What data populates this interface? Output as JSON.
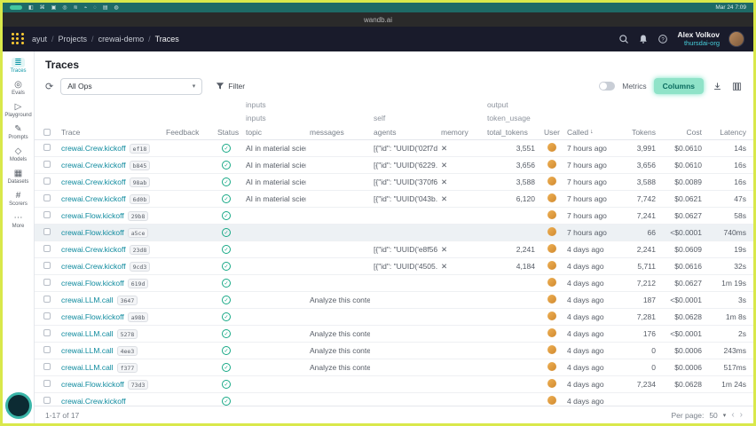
{
  "menubar": {
    "icons_left": [
      "◧",
      "⌘",
      "▣",
      "◎",
      "≋",
      "⌁",
      "◌",
      "▤",
      "◍"
    ],
    "time": "Mar 24 7:09"
  },
  "titlebar": {
    "title": "wandb.ai"
  },
  "header": {
    "breadcrumbs": [
      "ayut",
      "Projects",
      "crewai-demo",
      "Traces"
    ],
    "crumb_sep": "/",
    "user_name": "Alex Volkov",
    "user_org": "thursdai-org"
  },
  "sidebar": {
    "items": [
      {
        "name": "traces",
        "icon": "≣",
        "label": "Traces",
        "active": true
      },
      {
        "name": "evals",
        "icon": "◎",
        "label": "Evals",
        "active": false
      },
      {
        "name": "playground",
        "icon": "▷",
        "label": "Playground",
        "active": false
      },
      {
        "name": "prompts",
        "icon": "✎",
        "label": "Prompts",
        "active": false
      },
      {
        "name": "models",
        "icon": "◇",
        "label": "Models",
        "active": false
      },
      {
        "name": "datasets",
        "icon": "▦",
        "label": "Datasets",
        "active": false
      },
      {
        "name": "scorers",
        "icon": "#",
        "label": "Scorers",
        "active": false
      },
      {
        "name": "more",
        "icon": "⋯",
        "label": "More",
        "active": false
      }
    ]
  },
  "page": {
    "title": "Traces"
  },
  "toolbar": {
    "ops_selected": "All Ops",
    "filter_label": "Filter",
    "metrics_label": "Metrics",
    "columns_label": "Columns"
  },
  "table": {
    "groups": {
      "inputs1": "inputs",
      "output1": "output",
      "inputs2": "inputs",
      "self": "self",
      "token_usage": "token_usage"
    },
    "headers": {
      "trace": "Trace",
      "feedback": "Feedback",
      "status": "Status",
      "topic": "topic",
      "messages": "messages",
      "agents": "agents",
      "memory": "memory",
      "total_tokens": "total_tokens",
      "user": "User",
      "called": "Called",
      "tokens": "Tokens",
      "cost": "Cost",
      "latency": "Latency"
    },
    "rows": [
      {
        "name": "crewai.Crew.kickoff",
        "id": "ef18",
        "topic": "AI in material science",
        "messages": "",
        "agents": "[{\"id\": \"UUID('02f7d...",
        "memory": "✕",
        "total_tokens": "3,551",
        "called": "7 hours ago",
        "tokens": "3,991",
        "cost": "$0.0610",
        "latency": "14s",
        "selected": false
      },
      {
        "name": "crewai.Crew.kickoff",
        "id": "b845",
        "topic": "AI in material science",
        "messages": "",
        "agents": "[{\"id\": \"UUID('6229...",
        "memory": "✕",
        "total_tokens": "3,656",
        "called": "7 hours ago",
        "tokens": "3,656",
        "cost": "$0.0610",
        "latency": "16s",
        "selected": false
      },
      {
        "name": "crewai.Crew.kickoff",
        "id": "98ab",
        "topic": "AI in material science",
        "messages": "",
        "agents": "[{\"id\": \"UUID('370f6...",
        "memory": "✕",
        "total_tokens": "3,588",
        "called": "7 hours ago",
        "tokens": "3,588",
        "cost": "$0.0089",
        "latency": "16s",
        "selected": false
      },
      {
        "name": "crewai.Crew.kickoff",
        "id": "6d0b",
        "topic": "AI in material science",
        "messages": "",
        "agents": "[{\"id\": \"UUID('043b...",
        "memory": "✕",
        "total_tokens": "6,120",
        "called": "7 hours ago",
        "tokens": "7,742",
        "cost": "$0.0621",
        "latency": "47s",
        "selected": false
      },
      {
        "name": "crewai.Flow.kickoff",
        "id": "29b8",
        "topic": "",
        "messages": "",
        "agents": "",
        "memory": "",
        "total_tokens": "",
        "called": "7 hours ago",
        "tokens": "7,241",
        "cost": "$0.0627",
        "latency": "58s",
        "selected": false
      },
      {
        "name": "crewai.Flow.kickoff",
        "id": "a5ce",
        "topic": "",
        "messages": "",
        "agents": "",
        "memory": "",
        "total_tokens": "",
        "called": "7 hours ago",
        "tokens": "66",
        "cost": "<$0.0001",
        "latency": "740ms",
        "selected": true
      },
      {
        "name": "crewai.Crew.kickoff",
        "id": "23d8",
        "topic": "",
        "messages": "",
        "agents": "[{\"id\": \"UUID('e8f56...",
        "memory": "✕",
        "total_tokens": "2,241",
        "called": "4 days ago",
        "tokens": "2,241",
        "cost": "$0.0609",
        "latency": "19s",
        "selected": false
      },
      {
        "name": "crewai.Crew.kickoff",
        "id": "9cd3",
        "topic": "",
        "messages": "",
        "agents": "[{\"id\": \"UUID('4505...",
        "memory": "✕",
        "total_tokens": "4,184",
        "called": "4 days ago",
        "tokens": "5,711",
        "cost": "$0.0616",
        "latency": "32s",
        "selected": false
      },
      {
        "name": "crewai.Flow.kickoff",
        "id": "619d",
        "topic": "",
        "messages": "",
        "agents": "",
        "memory": "",
        "total_tokens": "",
        "called": "4 days ago",
        "tokens": "7,212",
        "cost": "$0.0627",
        "latency": "1m 19s",
        "selected": false
      },
      {
        "name": "crewai.LLM.call",
        "id": "3647",
        "topic": "",
        "messages": "Analyze this conten...",
        "agents": "",
        "memory": "",
        "total_tokens": "",
        "called": "4 days ago",
        "tokens": "187",
        "cost": "<$0.0001",
        "latency": "3s",
        "selected": false
      },
      {
        "name": "crewai.Flow.kickoff",
        "id": "a98b",
        "topic": "",
        "messages": "",
        "agents": "",
        "memory": "",
        "total_tokens": "",
        "called": "4 days ago",
        "tokens": "7,281",
        "cost": "$0.0628",
        "latency": "1m 8s",
        "selected": false
      },
      {
        "name": "crewai.LLM.call",
        "id": "5278",
        "topic": "",
        "messages": "Analyze this conten...",
        "agents": "",
        "memory": "",
        "total_tokens": "",
        "called": "4 days ago",
        "tokens": "176",
        "cost": "<$0.0001",
        "latency": "2s",
        "selected": false
      },
      {
        "name": "crewai.LLM.call",
        "id": "4ee3",
        "topic": "",
        "messages": "Analyze this conten...",
        "agents": "",
        "memory": "",
        "total_tokens": "",
        "called": "4 days ago",
        "tokens": "0",
        "cost": "$0.0006",
        "latency": "243ms",
        "selected": false
      },
      {
        "name": "crewai.LLM.call",
        "id": "f377",
        "topic": "",
        "messages": "Analyze this conten...",
        "agents": "",
        "memory": "",
        "total_tokens": "",
        "called": "4 days ago",
        "tokens": "0",
        "cost": "$0.0006",
        "latency": "517ms",
        "selected": false
      },
      {
        "name": "crewai.Flow.kickoff",
        "id": "73d3",
        "topic": "",
        "messages": "",
        "agents": "",
        "memory": "",
        "total_tokens": "",
        "called": "4 days ago",
        "tokens": "7,234",
        "cost": "$0.0628",
        "latency": "1m 24s",
        "selected": false
      },
      {
        "name": "crewai.Crew.kickoff",
        "id": "",
        "topic": "",
        "messages": "",
        "agents": "",
        "memory": "",
        "total_tokens": "",
        "called": "4 days ago",
        "tokens": "",
        "cost": "",
        "latency": "",
        "selected": false
      }
    ]
  },
  "footer": {
    "range": "1-17 of 17",
    "per_page_label": "Per page:",
    "per_page": "50"
  }
}
